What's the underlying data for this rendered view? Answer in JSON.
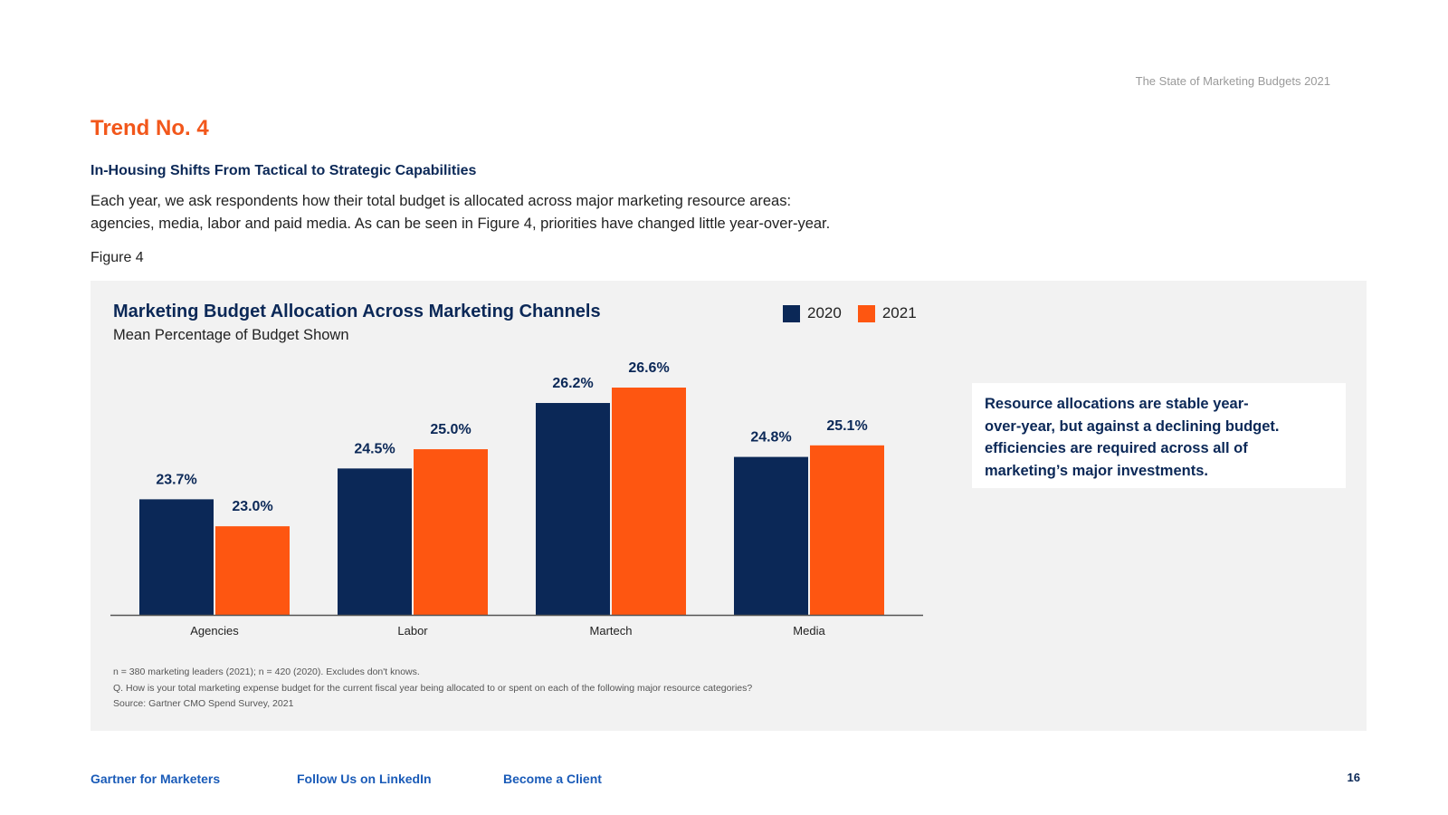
{
  "header": {
    "doc_title": "The State of Marketing Budgets 2021"
  },
  "trend_label": "Trend No. 4",
  "subheading": "In-Housing Shifts From Tactical to Strategic Capabilities",
  "intro": {
    "line1": "Each year, we ask respondents how their total budget is allocated across major marketing resource areas:",
    "line2": "agencies, media, labor and paid media. As can be seen in Figure 4, priorities have changed little year-over-year."
  },
  "figure_label": "Figure 4",
  "chart_data": {
    "type": "bar",
    "title": "Marketing Budget Allocation Across Marketing Channels",
    "subtitle": "Mean Percentage of Budget Shown",
    "categories": [
      "Agencies",
      "Labor",
      "Martech",
      "Media"
    ],
    "series": [
      {
        "name": "2020",
        "values": [
          23.7,
          24.5,
          26.2,
          24.8
        ],
        "labels": [
          "23.7%",
          "24.5%",
          "26.2%",
          "24.8%"
        ],
        "color": "#0b2857"
      },
      {
        "name": "2021",
        "values": [
          23.0,
          25.0,
          26.6,
          25.1
        ],
        "labels": [
          "23.0%",
          "25.0%",
          "26.6%",
          "25.1%"
        ],
        "color": "#fe5611"
      }
    ],
    "ylim": [
      20.7,
      26.6
    ],
    "grid": false,
    "legend": "top-right"
  },
  "callout": {
    "line1": "Resource allocations are stable year-",
    "line2": "over-year, but against a declining budget.",
    "line3": "efficiencies are required across all of",
    "line4": "marketing’s major investments."
  },
  "notes": {
    "line1": "n = 380 marketing leaders (2021); n = 420 (2020). Excludes don't knows.",
    "line2": "Q. How is your total marketing expense budget for the current fiscal year being allocated to or spent on each of the following major resource categories?",
    "line3": "Source: Gartner CMO Spend Survey, 2021"
  },
  "footer": {
    "link1": "Gartner for Marketers",
    "link2": "Follow Us on LinkedIn",
    "link3": "Become a Client",
    "page_number": "16"
  }
}
